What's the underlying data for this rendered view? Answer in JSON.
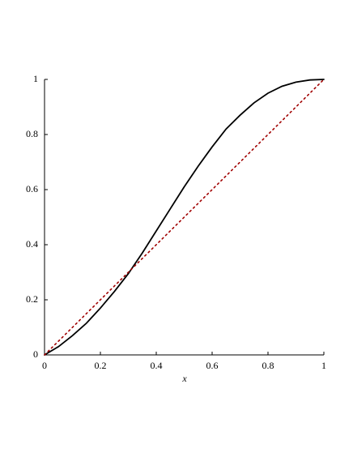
{
  "chart_data": {
    "type": "line",
    "x_label": "x",
    "xlim": [
      0,
      1
    ],
    "ylim": [
      0,
      1
    ],
    "xticks": [
      0,
      0.2,
      0.4,
      0.6,
      0.8,
      1
    ],
    "yticks": [
      0,
      0.2,
      0.4,
      0.6,
      0.8,
      1
    ],
    "series": [
      {
        "color": "#000000",
        "style": "solid",
        "x": [
          0,
          0.05,
          0.1,
          0.15,
          0.2,
          0.25,
          0.3,
          0.35,
          0.4,
          0.45,
          0.5,
          0.55,
          0.6,
          0.65,
          0.7,
          0.75,
          0.8,
          0.85,
          0.9,
          0.95,
          1
        ],
        "values": [
          0,
          0.03,
          0.07,
          0.115,
          0.17,
          0.23,
          0.295,
          0.37,
          0.45,
          0.53,
          0.61,
          0.685,
          0.755,
          0.82,
          0.87,
          0.915,
          0.95,
          0.975,
          0.99,
          0.998,
          1
        ]
      },
      {
        "color": "#a00000",
        "style": "dotted",
        "x": [
          0,
          1
        ],
        "values": [
          0,
          1
        ]
      }
    ]
  }
}
